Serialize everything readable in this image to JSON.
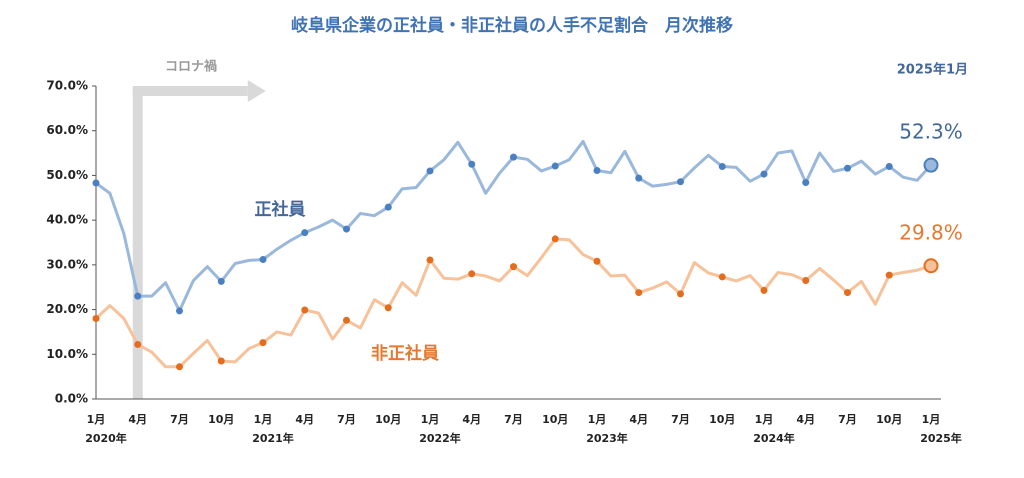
{
  "chart_data": {
    "type": "line",
    "title": "岐阜県企業の正社員・非正社員の人手不足割合　月次推移",
    "annotations": {
      "period": "コロナ禍",
      "latest": "2025年1月"
    },
    "categories": [
      "1月",
      null,
      null,
      "4月",
      null,
      null,
      "7月",
      null,
      null,
      "10月",
      null,
      null,
      "1月",
      null,
      null,
      "4月",
      null,
      null,
      "7月",
      null,
      null,
      "10月",
      null,
      null,
      "1月",
      null,
      null,
      "4月",
      null,
      null,
      "7月",
      null,
      null,
      "10月",
      null,
      null,
      "1月",
      null,
      null,
      "4月",
      null,
      null,
      "7月",
      null,
      null,
      "10月",
      null,
      null,
      "1月",
      null,
      null,
      "4月",
      null,
      null,
      "7月",
      null,
      null,
      "10月",
      null,
      null,
      "1月"
    ],
    "years": [
      "2020年",
      "2021年",
      "2022年",
      "2023年",
      "2024年",
      "2025年"
    ],
    "series": [
      {
        "name": "正社員",
        "color": "#9ab8dc",
        "marker_color": "#4a7fc1",
        "label_color": "#44679a",
        "values": [
          48.3,
          46,
          37,
          23,
          23,
          26,
          19.7,
          26.5,
          29.6,
          26.3,
          30.3,
          31,
          31.2,
          33.5,
          35.5,
          37.2,
          38.5,
          40,
          38,
          41.5,
          41,
          42.9,
          47,
          47.3,
          51,
          53.5,
          57.4,
          52.5,
          46,
          50.5,
          54.1,
          53.6,
          51,
          52.1,
          53.5,
          57.6,
          51.1,
          50.6,
          55.4,
          49.4,
          47.6,
          48,
          48.6,
          51.7,
          54.5,
          52,
          51.8,
          48.7,
          50.3,
          55,
          55.5,
          48.4,
          55,
          50.9,
          51.6,
          53.2,
          50.3,
          52,
          49.6,
          48.9,
          52.3
        ],
        "value_labels": [
          null,
          null,
          null,
          null,
          null,
          null,
          null,
          null,
          null,
          null,
          null,
          null,
          null,
          null,
          null,
          null,
          null,
          null,
          null,
          null,
          null,
          null,
          null,
          null,
          null,
          null,
          null,
          null,
          null,
          null,
          null,
          null,
          null,
          null,
          null,
          null,
          null,
          null,
          null,
          null,
          null,
          null,
          null,
          null,
          null,
          null,
          null,
          null,
          null,
          null,
          null,
          null,
          null,
          null,
          null,
          null,
          null,
          null,
          null,
          null,
          "52.3%"
        ]
      },
      {
        "name": "非正社員",
        "color": "#f7c29a",
        "marker_color": "#e36c1d",
        "label_color": "#e6782f",
        "values": [
          18,
          20.9,
          18,
          12.2,
          10.5,
          7.2,
          7.2,
          10.2,
          13.1,
          8.5,
          8.3,
          11.3,
          12.6,
          15,
          14.3,
          19.9,
          19.2,
          13.4,
          17.6,
          15.9,
          22.2,
          20.4,
          26,
          23.2,
          31.1,
          27,
          26.8,
          28,
          27.5,
          26.4,
          29.6,
          27.6,
          31.6,
          35.8,
          35.6,
          32.3,
          30.8,
          27.5,
          27.7,
          23.8,
          24.8,
          26.2,
          23.5,
          30.5,
          28.2,
          27.3,
          26.4,
          27.6,
          24.3,
          28.3,
          27.8,
          26.5,
          29.2,
          26.6,
          23.8,
          26.3,
          21.2,
          27.7,
          28.3,
          28.8,
          29.8
        ],
        "value_labels": [
          null,
          null,
          null,
          null,
          null,
          null,
          null,
          null,
          null,
          null,
          null,
          null,
          null,
          null,
          null,
          null,
          null,
          null,
          null,
          null,
          null,
          null,
          null,
          null,
          null,
          null,
          null,
          null,
          null,
          null,
          null,
          null,
          null,
          null,
          null,
          null,
          null,
          null,
          null,
          null,
          null,
          null,
          null,
          null,
          null,
          null,
          null,
          null,
          null,
          null,
          null,
          null,
          null,
          null,
          null,
          null,
          null,
          null,
          null,
          null,
          "29.8%"
        ]
      }
    ],
    "ylim": [
      0,
      70
    ],
    "yticks": [
      {
        "value": 0,
        "label": "0.0%"
      },
      {
        "value": 10,
        "label": "10.0%"
      },
      {
        "value": 20,
        "label": "20.0%"
      },
      {
        "value": 30,
        "label": "30.0%"
      },
      {
        "value": 40,
        "label": "40.0%"
      },
      {
        "value": 50,
        "label": "50.0%"
      },
      {
        "value": 60,
        "label": "60.0%"
      },
      {
        "value": 70,
        "label": "70.0%"
      }
    ],
    "grid": false
  }
}
